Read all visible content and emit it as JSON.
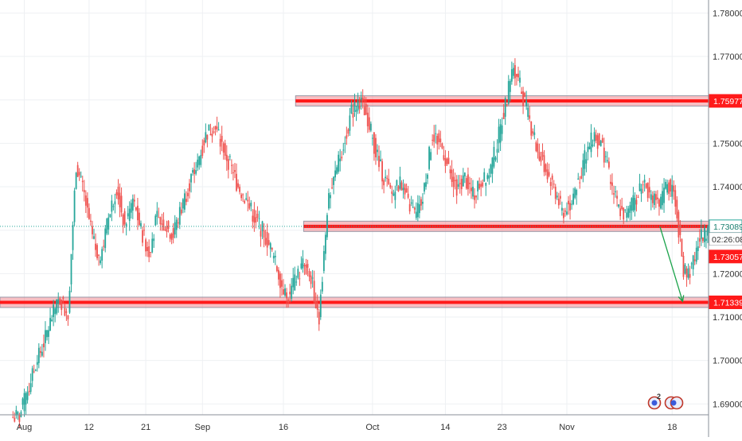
{
  "chart_data": {
    "type": "candlestick",
    "y_ticks": [
      "1.78000",
      "1.77000",
      "1.76000",
      "1.75000",
      "1.74000",
      "1.73000",
      "1.72000",
      "1.71000",
      "1.70000",
      "1.69000"
    ],
    "y_tick_values": [
      1.78,
      1.77,
      1.76,
      1.75,
      1.74,
      1.73,
      1.72,
      1.71,
      1.7,
      1.69
    ],
    "ylim": [
      1.6875,
      1.783
    ],
    "x_ticks": [
      {
        "label": "Aug",
        "x": 1
      },
      {
        "label": "12",
        "x": 9
      },
      {
        "label": "21",
        "x": 16
      },
      {
        "label": "Sep",
        "x": 23
      },
      {
        "label": "16",
        "x": 33
      },
      {
        "label": "Oct",
        "x": 44
      },
      {
        "label": "14",
        "x": 53
      },
      {
        "label": "23",
        "x": 60
      },
      {
        "label": "Nov",
        "x": 68
      },
      {
        "label": "18",
        "x": 81
      }
    ],
    "xlim": [
      -2,
      85.5
    ],
    "current_price": "1.73089",
    "countdown": "02:26:08",
    "price_labels": [
      {
        "text": "1.75977",
        "value": 1.75977,
        "kind": "level"
      },
      {
        "text": "1.73089",
        "value": 1.73089,
        "kind": "current"
      },
      {
        "text": "1.73057",
        "value": 1.73057,
        "kind": "red"
      },
      {
        "text": "1.71339",
        "value": 1.71339,
        "kind": "level"
      }
    ],
    "levels": [
      {
        "name": "resistance-top",
        "value": 1.75977,
        "x_start": 34.5,
        "x_end": 85.5
      },
      {
        "name": "support-middle",
        "value": 1.73089,
        "x_start": 35.5,
        "x_end": 85.5
      },
      {
        "name": "support-bottom",
        "value": 1.71339,
        "x_start": -2,
        "x_end": 85.5
      }
    ],
    "projection": {
      "from": [
        79.5,
        1.7308
      ],
      "to": [
        82.3,
        1.7136
      ]
    },
    "close": [
      1.687,
      1.693,
      1.699,
      1.704,
      1.71,
      1.714,
      1.711,
      1.745,
      1.738,
      1.728,
      1.723,
      1.733,
      1.74,
      1.731,
      1.737,
      1.73,
      1.725,
      1.733,
      1.731,
      1.729,
      1.735,
      1.741,
      1.745,
      1.752,
      1.754,
      1.75,
      1.745,
      1.74,
      1.737,
      1.733,
      1.73,
      1.726,
      1.72,
      1.714,
      1.718,
      1.722,
      1.719,
      1.71,
      1.735,
      1.743,
      1.75,
      1.757,
      1.76,
      1.756,
      1.748,
      1.742,
      1.738,
      1.741,
      1.736,
      1.733,
      1.74,
      1.752,
      1.75,
      1.744,
      1.74,
      1.742,
      1.738,
      1.741,
      1.743,
      1.75,
      1.759,
      1.768,
      1.762,
      1.755,
      1.748,
      1.744,
      1.74,
      1.734,
      1.736,
      1.741,
      1.748,
      1.752,
      1.749,
      1.741,
      1.735,
      1.733,
      1.737,
      1.741,
      1.738,
      1.735,
      1.741,
      1.737,
      1.72,
      1.721,
      1.728,
      1.73,
      1.73089
    ]
  }
}
